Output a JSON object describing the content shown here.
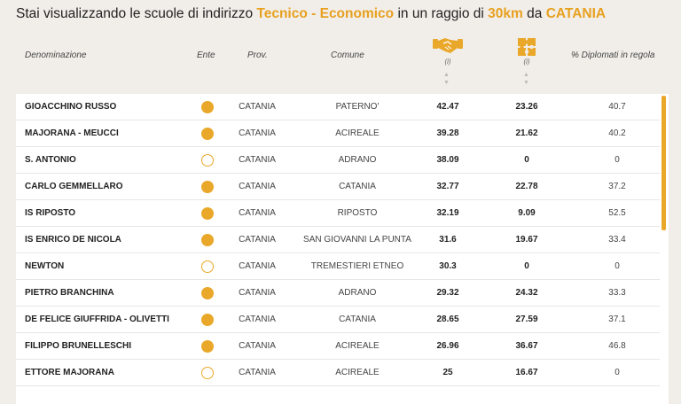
{
  "title": {
    "prefix": "Stai visualizzando le scuole di indirizzo",
    "indirizzo": "Tecnico - Economico",
    "middle": "in un raggio di",
    "raggio": "30km",
    "joiner": "da",
    "citta": "CATANIA"
  },
  "headers": {
    "denominazione": "Denominazione",
    "ente": "Ente",
    "prov": "Prov.",
    "comune": "Comune",
    "metric1_icon": "handshake-icon",
    "metric1_info": "(i)",
    "metric2_icon": "puzzle-icon",
    "metric2_info": "(i)",
    "diplomati": "% Diplomati in regola",
    "sort_up": "▲",
    "sort_down": "▼"
  },
  "colors": {
    "accent": "#eaa82a",
    "title_highlight": "#e8a020"
  },
  "rows": [
    {
      "name": "GIOACCHINO RUSSO",
      "ente": "filled",
      "prov": "CATANIA",
      "comune": "PATERNO'",
      "v1": "42.47",
      "v2": "23.26",
      "v3": "40.7"
    },
    {
      "name": "MAJORANA - MEUCCI",
      "ente": "filled",
      "prov": "CATANIA",
      "comune": "ACIREALE",
      "v1": "39.28",
      "v2": "21.62",
      "v3": "40.2"
    },
    {
      "name": "S. ANTONIO",
      "ente": "empty",
      "prov": "CATANIA",
      "comune": "ADRANO",
      "v1": "38.09",
      "v2": "0",
      "v3": "0"
    },
    {
      "name": "CARLO GEMMELLARO",
      "ente": "filled",
      "prov": "CATANIA",
      "comune": "CATANIA",
      "v1": "32.77",
      "v2": "22.78",
      "v3": "37.2"
    },
    {
      "name": "IS RIPOSTO",
      "ente": "filled",
      "prov": "CATANIA",
      "comune": "RIPOSTO",
      "v1": "32.19",
      "v2": "9.09",
      "v3": "52.5"
    },
    {
      "name": "IS ENRICO DE NICOLA",
      "ente": "filled",
      "prov": "CATANIA",
      "comune": "SAN GIOVANNI LA PUNTA",
      "v1": "31.6",
      "v2": "19.67",
      "v3": "33.4"
    },
    {
      "name": "NEWTON",
      "ente": "empty",
      "prov": "CATANIA",
      "comune": "TREMESTIERI ETNEO",
      "v1": "30.3",
      "v2": "0",
      "v3": "0"
    },
    {
      "name": "PIETRO BRANCHINA",
      "ente": "filled",
      "prov": "CATANIA",
      "comune": "ADRANO",
      "v1": "29.32",
      "v2": "24.32",
      "v3": "33.3"
    },
    {
      "name": "DE FELICE GIUFFRIDA - OLIVETTI",
      "ente": "filled",
      "prov": "CATANIA",
      "comune": "CATANIA",
      "v1": "28.65",
      "v2": "27.59",
      "v3": "37.1"
    },
    {
      "name": "FILIPPO BRUNELLESCHI",
      "ente": "filled",
      "prov": "CATANIA",
      "comune": "ACIREALE",
      "v1": "26.96",
      "v2": "36.67",
      "v3": "46.8"
    },
    {
      "name": "ETTORE MAJORANA",
      "ente": "empty",
      "prov": "CATANIA",
      "comune": "ACIREALE",
      "v1": "25",
      "v2": "16.67",
      "v3": "0"
    }
  ]
}
